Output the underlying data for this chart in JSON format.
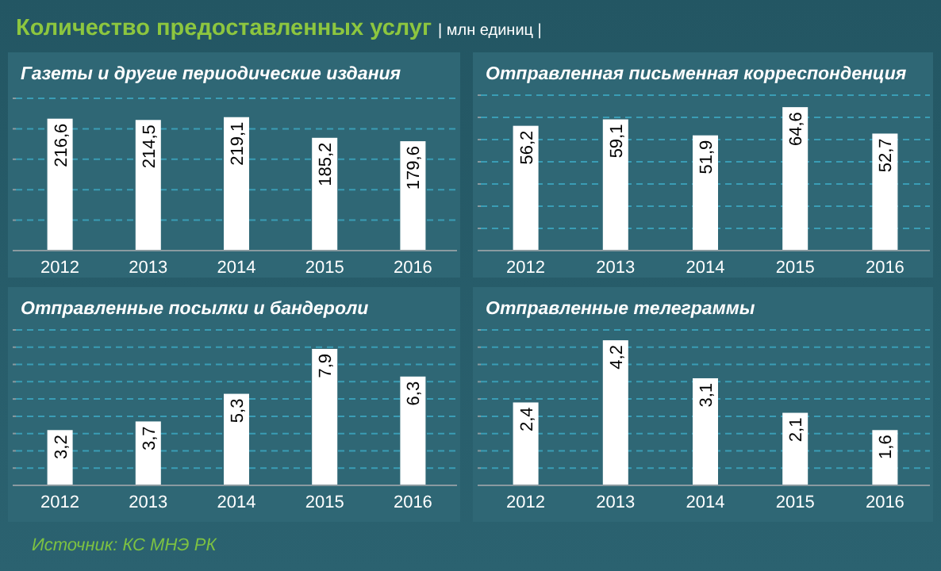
{
  "chart_data": [
    {
      "type": "bar",
      "title": "Газеты и другие периодические издания",
      "annotations": [
        "Количество предоставленных услуг",
        "| млн единиц |",
        "Источник: КС МНЭ РК"
      ],
      "categories": [
        "2012",
        "2013",
        "2014",
        "2015",
        "2016"
      ],
      "values": [
        216.6,
        214.5,
        219.1,
        185.2,
        179.6
      ],
      "value_labels": [
        "216,6",
        "214,5",
        "219,1",
        "185,2",
        "179,6"
      ],
      "color": "#ffffff",
      "ylim": [
        0,
        250
      ],
      "yticks": [
        {
          "value": 0,
          "label": null
        },
        {
          "value": 50,
          "label": null
        },
        {
          "value": 100,
          "label": null
        },
        {
          "value": 150,
          "label": null
        },
        {
          "value": 200,
          "label": null
        },
        {
          "value": 250,
          "label": null
        }
      ],
      "grid": "y",
      "tick_labels": "x"
    },
    {
      "type": "bar",
      "title": "Отправленная письменная корреспонденция",
      "categories": [
        "2012",
        "2013",
        "2014",
        "2015",
        "2016"
      ],
      "values": [
        56.2,
        59.1,
        51.9,
        64.6,
        52.7
      ],
      "value_labels": [
        "56,2",
        "59,1",
        "51,9",
        "64,6",
        "52,7"
      ],
      "color": "#ffffff",
      "ylim": [
        0,
        70
      ],
      "yticks": [
        {
          "value": 0,
          "label": null
        },
        {
          "value": 10,
          "label": null
        },
        {
          "value": 20,
          "label": null
        },
        {
          "value": 30,
          "label": null
        },
        {
          "value": 40,
          "label": null
        },
        {
          "value": 50,
          "label": null
        },
        {
          "value": 60,
          "label": null
        },
        {
          "value": 70,
          "label": null
        }
      ],
      "grid": "y",
      "tick_labels": "x"
    },
    {
      "type": "bar",
      "title": "Отправленные посылки и бандероли",
      "categories": [
        "2012",
        "2013",
        "2014",
        "2015",
        "2016"
      ],
      "values": [
        3.2,
        3.7,
        5.3,
        7.9,
        6.3
      ],
      "value_labels": [
        "3,2",
        "3,7",
        "5,3",
        "7,9",
        "6,3"
      ],
      "color": "#ffffff",
      "ylim": [
        0,
        9
      ],
      "yticks": [
        {
          "value": 0,
          "label": null
        },
        {
          "value": 1,
          "label": null
        },
        {
          "value": 2,
          "label": null
        },
        {
          "value": 3,
          "label": null
        },
        {
          "value": 4,
          "label": null
        },
        {
          "value": 5,
          "label": null
        },
        {
          "value": 6,
          "label": null
        },
        {
          "value": 7,
          "label": null
        },
        {
          "value": 8,
          "label": null
        },
        {
          "value": 9,
          "label": null
        }
      ],
      "grid": "y",
      "tick_labels": "x"
    },
    {
      "type": "bar",
      "title": "Отправленные телеграммы",
      "categories": [
        "2012",
        "2013",
        "2014",
        "2015",
        "2016"
      ],
      "values": [
        2.4,
        4.2,
        3.1,
        2.1,
        1.6
      ],
      "value_labels": [
        "2,4",
        "4,2",
        "3,1",
        "2,1",
        "1,6"
      ],
      "color": "#ffffff",
      "ylim": [
        0,
        4.5
      ],
      "yticks": [
        {
          "value": 0,
          "label": null
        },
        {
          "value": 0.5,
          "label": null
        },
        {
          "value": 1,
          "label": null
        },
        {
          "value": 1.5,
          "label": null
        },
        {
          "value": 2,
          "label": null
        },
        {
          "value": 2.5,
          "label": null
        },
        {
          "value": 3,
          "label": null
        },
        {
          "value": 3.5,
          "label": null
        },
        {
          "value": 4,
          "label": null
        },
        {
          "value": 4.5,
          "label": null
        }
      ],
      "grid": "y",
      "tick_labels": "x"
    }
  ]
}
